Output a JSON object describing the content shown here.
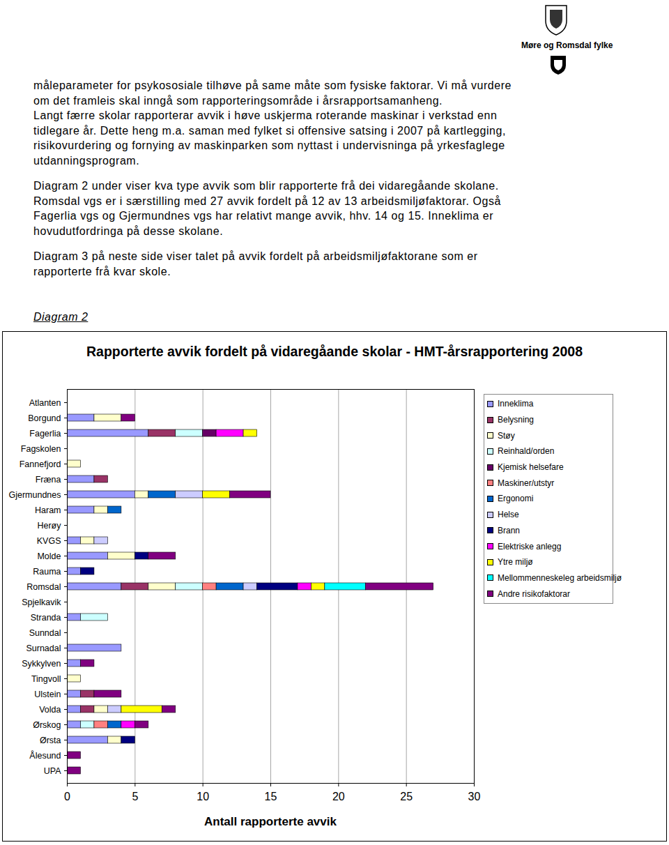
{
  "header": {
    "organisation": "Møre og Romsdal fylke"
  },
  "paragraphs": [
    [
      "måleparameter for psykososiale tilhøve på same måte som fysiske faktorar. Vi må vurdere",
      "om det framleis skal inngå som rapporteringsområde i årsrapportsamanheng.",
      "Langt færre skolar rapporterar avvik i høve uskjerma roterande maskinar i verkstad enn",
      "tidlegare år. Dette heng m.a. saman med fylket si offensive satsing i 2007 på kartlegging,",
      "risikovurdering og fornying av maskinparken som nyttast i undervisninga på yrkesfaglege",
      "utdanningsprogram."
    ],
    [
      "Diagram 2 under viser kva type avvik som blir rapporterte frå dei vidaregåande skolane.",
      "Romsdal vgs er i særstilling med 27 avvik fordelt på 12 av 13 arbeidsmiljøfaktorar. Også",
      "Fagerlia vgs og Gjermundnes vgs har relativt mange avvik, hhv. 14 og 15. Inneklima er",
      "hovudutfordringa på desse skolane."
    ],
    [
      "Diagram 3 på neste side viser talet på avvik fordelt på arbeidsmiljøfaktorane som er",
      "rapporterte frå kvar skole."
    ]
  ],
  "caption": "Diagram 2",
  "chart_data": {
    "type": "bar",
    "orientation": "horizontal",
    "stacked": true,
    "title": "Rapporterte avvik fordelt på vidaregåande skolar - HMT-årsrapportering 2008",
    "x_label": "Antall rapporterte avvik",
    "xlim": [
      0,
      30
    ],
    "xticks": [
      0,
      5,
      10,
      15,
      20,
      25,
      30
    ],
    "grid": true,
    "legend": "right",
    "categories": [
      "Atlanten",
      "Borgund",
      "Fagerlia",
      "Fagskolen",
      "Fannefjord",
      "Fræna",
      "Gjermundnes",
      "Haram",
      "Herøy",
      "KVGS",
      "Molde",
      "Rauma",
      "Romsdal",
      "Spjelkavik",
      "Stranda",
      "Sunndal",
      "Surnadal",
      "Sykkylven",
      "Tingvoll",
      "Ulstein",
      "Volda",
      "Ørskog",
      "Ørsta",
      "Ålesund",
      "UPA"
    ],
    "series": [
      {
        "name": "Inneklima",
        "color": "#9999ff",
        "values": [
          0,
          2,
          6,
          0,
          0,
          2,
          5,
          2,
          0,
          1,
          3,
          1,
          4,
          0,
          1,
          0,
          4,
          1,
          0,
          1,
          1,
          1,
          3,
          0,
          0
        ]
      },
      {
        "name": "Belysning",
        "color": "#993366",
        "values": [
          0,
          0,
          2,
          0,
          0,
          1,
          0,
          0,
          0,
          0,
          0,
          0,
          2,
          0,
          0,
          0,
          0,
          0,
          0,
          1,
          1,
          0,
          0,
          0,
          0
        ]
      },
      {
        "name": "Støy",
        "color": "#ffffcc",
        "values": [
          0,
          2,
          0,
          0,
          1,
          0,
          1,
          1,
          0,
          1,
          2,
          0,
          2,
          0,
          0,
          0,
          0,
          0,
          1,
          0,
          1,
          0,
          1,
          0,
          0
        ]
      },
      {
        "name": "Reinhald/orden",
        "color": "#ccffff",
        "values": [
          0,
          0,
          2,
          0,
          0,
          0,
          0,
          0,
          0,
          0,
          0,
          0,
          2,
          0,
          2,
          0,
          0,
          0,
          0,
          0,
          0,
          1,
          0,
          0,
          0
        ]
      },
      {
        "name": "Kjemisk helsefare",
        "color": "#660066",
        "values": [
          0,
          0,
          1,
          0,
          0,
          0,
          0,
          0,
          0,
          0,
          0,
          0,
          0,
          0,
          0,
          0,
          0,
          0,
          0,
          0,
          0,
          0,
          0,
          0,
          0
        ]
      },
      {
        "name": "Maskiner/utstyr",
        "color": "#ff8080",
        "values": [
          0,
          0,
          0,
          0,
          0,
          0,
          0,
          0,
          0,
          0,
          0,
          0,
          1,
          0,
          0,
          0,
          0,
          0,
          0,
          0,
          0,
          1,
          0,
          0,
          0
        ]
      },
      {
        "name": "Ergonomi",
        "color": "#0066cc",
        "values": [
          0,
          0,
          0,
          0,
          0,
          0,
          2,
          1,
          0,
          0,
          0,
          0,
          2,
          0,
          0,
          0,
          0,
          0,
          0,
          0,
          0,
          1,
          0,
          0,
          0
        ]
      },
      {
        "name": "Helse",
        "color": "#ccccff",
        "values": [
          0,
          0,
          0,
          0,
          0,
          0,
          2,
          0,
          0,
          1,
          0,
          0,
          1,
          0,
          0,
          0,
          0,
          0,
          0,
          0,
          1,
          0,
          0,
          0,
          0
        ]
      },
      {
        "name": "Brann",
        "color": "#000080",
        "values": [
          0,
          0,
          0,
          0,
          0,
          0,
          0,
          0,
          0,
          0,
          1,
          1,
          3,
          0,
          0,
          0,
          0,
          0,
          0,
          0,
          0,
          0,
          1,
          0,
          0
        ]
      },
      {
        "name": "Elektriske anlegg",
        "color": "#ff00ff",
        "values": [
          0,
          0,
          2,
          0,
          0,
          0,
          0,
          0,
          0,
          0,
          0,
          0,
          1,
          0,
          0,
          0,
          0,
          0,
          0,
          0,
          0,
          1,
          0,
          0,
          0
        ]
      },
      {
        "name": "Ytre miljø",
        "color": "#ffff00",
        "values": [
          0,
          0,
          1,
          0,
          0,
          0,
          2,
          0,
          0,
          0,
          0,
          0,
          1,
          0,
          0,
          0,
          0,
          0,
          0,
          0,
          3,
          0,
          0,
          0,
          0
        ]
      },
      {
        "name": "Mellommenneskeleg arbeidsmiljø",
        "color": "#00ffff",
        "values": [
          0,
          0,
          0,
          0,
          0,
          0,
          0,
          0,
          0,
          0,
          0,
          0,
          3,
          0,
          0,
          0,
          0,
          0,
          0,
          0,
          0,
          0,
          0,
          0,
          0
        ]
      },
      {
        "name": "Andre risikofaktorar",
        "color": "#800080",
        "values": [
          0,
          1,
          0,
          0,
          0,
          0,
          3,
          0,
          0,
          0,
          2,
          0,
          5,
          0,
          0,
          0,
          0,
          1,
          0,
          2,
          1,
          1,
          0,
          1,
          1
        ]
      }
    ]
  }
}
